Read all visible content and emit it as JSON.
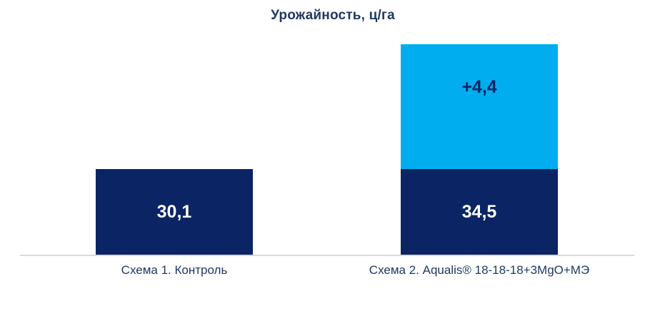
{
  "chart_data": {
    "type": "bar",
    "stacked": true,
    "title": "Урожайность, ц/га",
    "categories": [
      "Схема 1. Контроль",
      "Схема 2. Aqualis® 18-18-18+3MgO+МЭ"
    ],
    "series": [
      {
        "role": "yield",
        "color": "#0B2463",
        "values": [
          30.1,
          34.5
        ],
        "labels": [
          "30,1",
          "34,5"
        ],
        "label_color": "#FFFFFF"
      },
      {
        "role": "increment-over-control",
        "color": "#00AEEF",
        "values": [
          0,
          4.4
        ],
        "labels": [
          "",
          "+4,4"
        ],
        "label_color": "#0B2463"
      }
    ],
    "xlabel": "",
    "ylabel": "",
    "legend": false,
    "gridlines": false,
    "y_axis_visible": false,
    "baseline_color": "#D9D9D9",
    "title_color": "#1F3864",
    "category_label_color": "#1F3864",
    "background": "#FFFFFF"
  }
}
